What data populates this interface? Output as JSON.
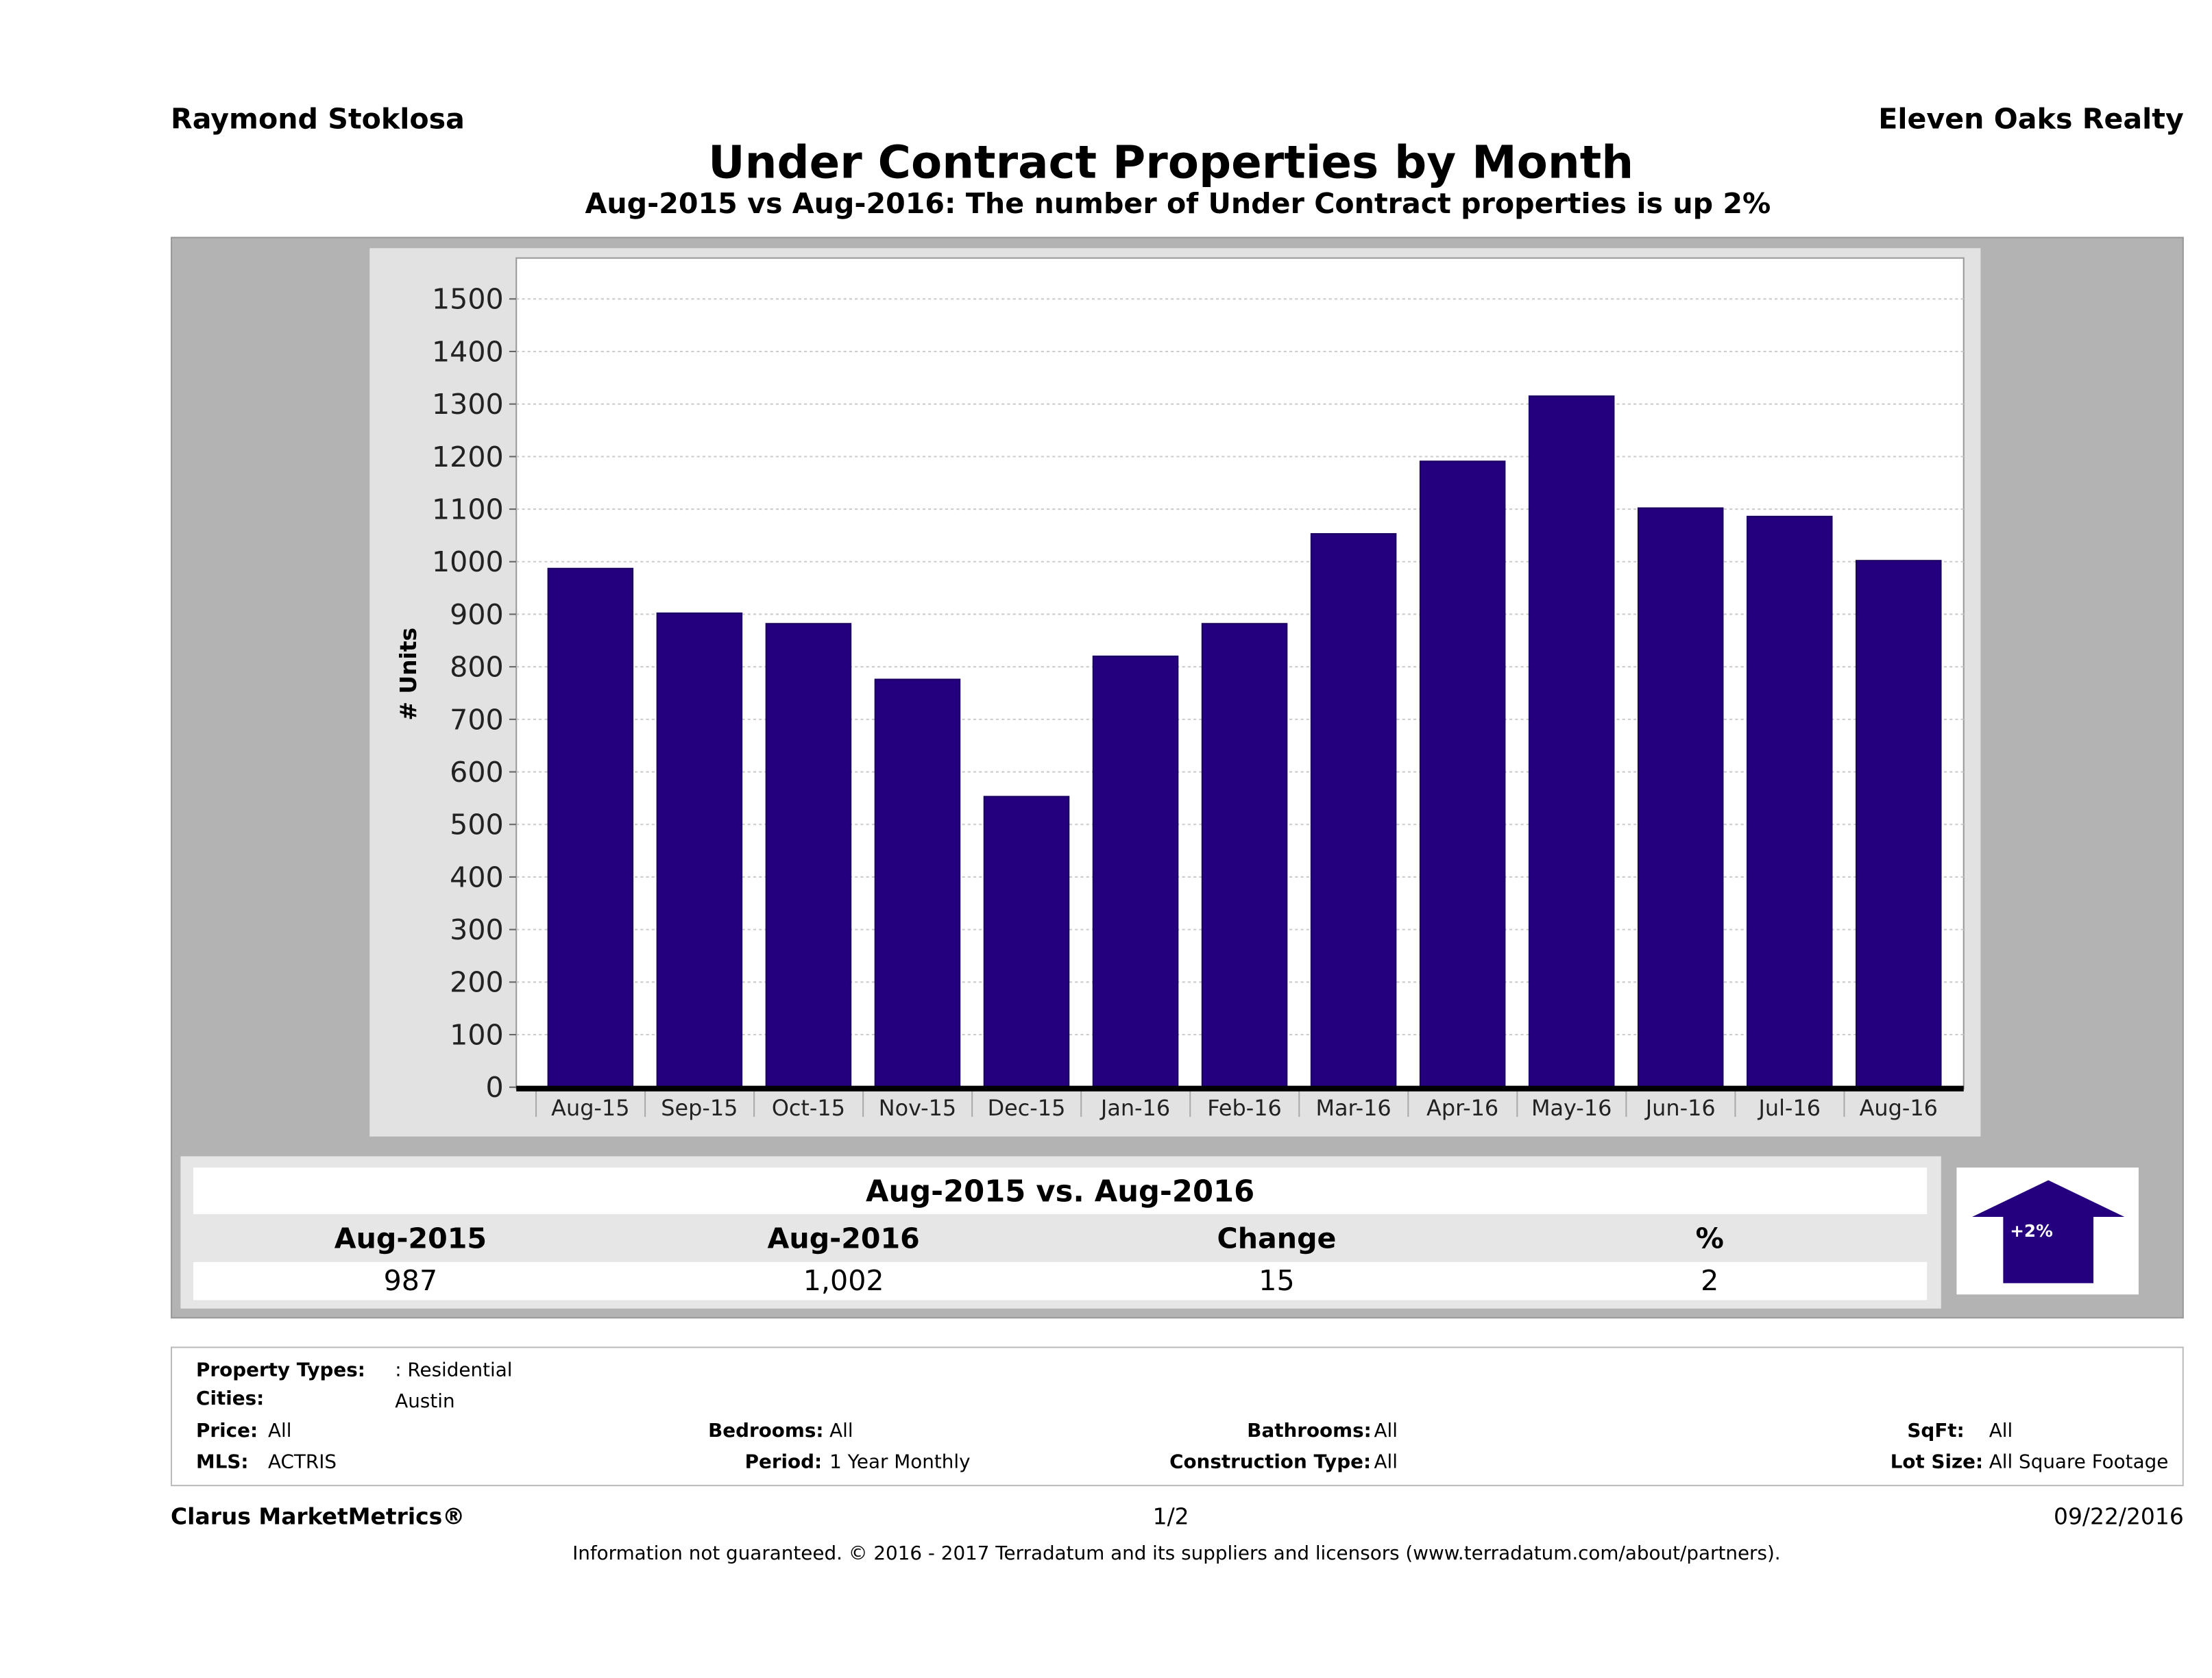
{
  "header": {
    "agent": "Raymond Stoklosa",
    "brokerage": "Eleven Oaks Realty",
    "title": "Under Contract Properties by Month",
    "subtitle": "Aug-2015 vs Aug-2016: The number of Under Contract  properties is up 2%"
  },
  "chart_data": {
    "type": "bar",
    "title": "Under Contract Properties by Month",
    "xlabel": "",
    "ylabel": "# Units",
    "ylim": [
      0,
      1500
    ],
    "yticks": [
      0,
      100,
      200,
      300,
      400,
      500,
      600,
      700,
      800,
      900,
      1000,
      1100,
      1200,
      1300,
      1400,
      1500
    ],
    "grid": true,
    "bar_color": "#24007f",
    "categories": [
      "Aug-15",
      "Sep-15",
      "Oct-15",
      "Nov-15",
      "Dec-15",
      "Jan-16",
      "Feb-16",
      "Mar-16",
      "Apr-16",
      "May-16",
      "Jun-16",
      "Jul-16",
      "Aug-16"
    ],
    "values": [
      987,
      902,
      882,
      776,
      553,
      820,
      882,
      1053,
      1191,
      1315,
      1102,
      1086,
      1002
    ]
  },
  "summary": {
    "heading": "Aug-2015 vs. Aug-2016",
    "columns": [
      "Aug-2015",
      "Aug-2016",
      "Change",
      "%"
    ],
    "values": [
      "987",
      "1,002",
      "15",
      "2"
    ],
    "badge": "+2%",
    "badge_direction": "up"
  },
  "filters": {
    "property_types_label": "Property Types:",
    "property_types": ": Residential",
    "cities_label": "Cities:",
    "cities": "Austin",
    "price_label": "Price:",
    "price": "All",
    "bedrooms_label": "Bedrooms:",
    "bedrooms": "All",
    "bathrooms_label": "Bathrooms:",
    "bathrooms": "All",
    "sqft_label": "SqFt:",
    "sqft": "All",
    "mls_label": "MLS:",
    "mls": "ACTRIS",
    "period_label": "Period:",
    "period": "1 Year Monthly",
    "construction_label": "Construction Type:",
    "construction": "All",
    "lot_label": "Lot Size:",
    "lot": "All Square Footage"
  },
  "footer": {
    "product": "Clarus MarketMetrics®",
    "page": "1/2",
    "date": "09/22/2016",
    "disclaimer": "Information not guaranteed. © 2016 - 2017 Terradatum and its suppliers and licensors (www.terradatum.com/about/partners)."
  }
}
